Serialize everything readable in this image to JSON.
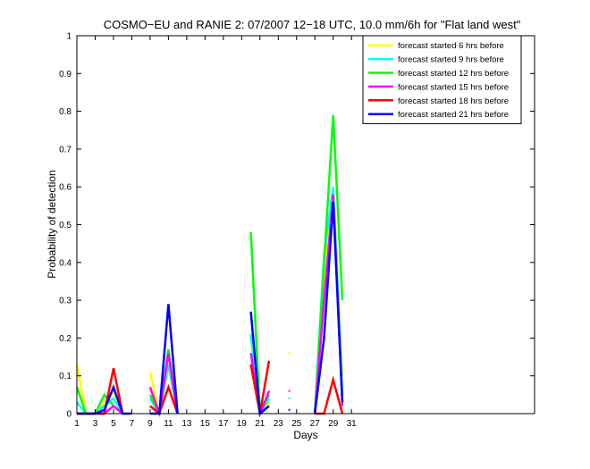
{
  "chart_data": {
    "type": "line",
    "title": "COSMO−EU and RANIE 2: 07/2007 12−18 UTC, 10.0 mm/6h for \"Flat land west\"",
    "xlabel": "Days",
    "ylabel": "Probability of detection",
    "xlim": [
      1,
      51
    ],
    "ylim": [
      0,
      1
    ],
    "xticks": [
      1,
      3,
      5,
      7,
      9,
      11,
      13,
      15,
      17,
      19,
      21,
      23,
      25,
      27,
      29,
      31
    ],
    "xtick_labels": [
      "1",
      "3",
      "5",
      "7",
      "9",
      "11",
      "13",
      "15",
      "17",
      "19",
      "21",
      "23",
      "25",
      "27",
      "29",
      "31"
    ],
    "yticks": [
      0,
      0.1,
      0.2,
      0.3,
      0.4,
      0.5,
      0.6,
      0.7,
      0.8,
      0.9,
      1
    ],
    "ytick_labels": [
      "0",
      "0.1",
      "0.2",
      "0.3",
      "0.4",
      "0.5",
      "0.6",
      "0.7",
      "0.8",
      "0.9",
      "1"
    ],
    "grid": false,
    "legend_position": "top-right",
    "series": [
      {
        "name": "forecast started 6 hrs before",
        "color": "#ffff00",
        "segments": [
          [
            [
              1,
              0.13
            ],
            [
              2,
              0
            ],
            [
              3,
              0
            ],
            [
              4,
              0.03
            ],
            [
              5,
              0.06
            ],
            [
              6,
              0
            ]
          ],
          [
            [
              9,
              0.11
            ],
            [
              10,
              0
            ],
            [
              11,
              0.12
            ],
            [
              12,
              0
            ]
          ],
          [
            [
              20,
              0.2
            ],
            [
              21,
              0
            ],
            [
              22,
              0.03
            ]
          ],
          [
            [
              27,
              0
            ],
            [
              28,
              0.35
            ],
            [
              29,
              0.6
            ],
            [
              30,
              0.1
            ]
          ]
        ],
        "points": [
          [
            24.2,
            0.16
          ]
        ]
      },
      {
        "name": "forecast started 9 hrs before",
        "color": "#00ffff",
        "segments": [
          [
            [
              1,
              0.03
            ],
            [
              2,
              0
            ],
            [
              3,
              0
            ],
            [
              4,
              0.02
            ],
            [
              5,
              0.04
            ],
            [
              6,
              0
            ]
          ],
          [
            [
              9,
              0.04
            ],
            [
              10,
              0
            ],
            [
              11,
              0.13
            ],
            [
              12,
              0
            ]
          ],
          [
            [
              20,
              0.21
            ],
            [
              21,
              0
            ],
            [
              22,
              0.04
            ]
          ],
          [
            [
              27,
              0
            ],
            [
              28,
              0.42
            ],
            [
              29,
              0.6
            ],
            [
              30,
              0.05
            ]
          ]
        ],
        "points": [
          [
            24.2,
            0.04
          ]
        ]
      },
      {
        "name": "forecast started 12 hrs before",
        "color": "#00ff00",
        "segments": [
          [
            [
              1,
              0.07
            ],
            [
              2,
              0
            ],
            [
              3,
              0
            ],
            [
              4,
              0.05
            ],
            [
              5,
              0.02
            ],
            [
              6,
              0
            ]
          ],
          [
            [
              9,
              0.05
            ],
            [
              10,
              0
            ],
            [
              11,
              0.17
            ],
            [
              12,
              0
            ]
          ],
          [
            [
              20,
              0.48
            ],
            [
              21,
              0
            ],
            [
              22,
              0.05
            ]
          ],
          [
            [
              27,
              0
            ],
            [
              28,
              0.4
            ],
            [
              29,
              0.79
            ],
            [
              30,
              0.3
            ]
          ]
        ],
        "points": []
      },
      {
        "name": "forecast started 15 hrs before",
        "color": "#ff00ff",
        "segments": [
          [
            [
              1,
              0
            ],
            [
              2,
              0
            ],
            [
              3,
              0
            ],
            [
              4,
              0
            ],
            [
              5,
              0.02
            ],
            [
              6,
              0
            ]
          ],
          [
            [
              9,
              0.07
            ],
            [
              10,
              0
            ],
            [
              11,
              0.16
            ],
            [
              12,
              0
            ]
          ],
          [
            [
              20,
              0.16
            ],
            [
              21,
              0
            ],
            [
              22,
              0.06
            ]
          ],
          [
            [
              27,
              0
            ],
            [
              28,
              0.3
            ],
            [
              29,
              0.58
            ],
            [
              30,
              0.02
            ]
          ]
        ],
        "points": [
          [
            24.2,
            0.06
          ]
        ]
      },
      {
        "name": "forecast started 18 hrs before",
        "color": "#ff0000",
        "segments": [
          [
            [
              1,
              0
            ],
            [
              2,
              0
            ],
            [
              3,
              0
            ],
            [
              4,
              0
            ],
            [
              5,
              0.12
            ],
            [
              6,
              0
            ]
          ],
          [
            [
              9,
              0.02
            ],
            [
              10,
              0
            ],
            [
              11,
              0.07
            ],
            [
              12,
              0
            ]
          ],
          [
            [
              20,
              0.13
            ],
            [
              21,
              0
            ],
            [
              22,
              0.14
            ]
          ],
          [
            [
              27,
              0
            ],
            [
              28,
              0
            ],
            [
              29,
              0.09
            ],
            [
              30,
              0
            ]
          ]
        ],
        "points": []
      },
      {
        "name": "forecast started 21 hrs before",
        "color": "#0000ff",
        "segments": [
          [
            [
              1,
              0
            ],
            [
              2,
              0
            ],
            [
              3,
              0
            ],
            [
              4,
              0.01
            ],
            [
              5,
              0.07
            ],
            [
              6,
              0
            ],
            [
              7,
              0
            ]
          ],
          [
            [
              9,
              0
            ],
            [
              10,
              0
            ],
            [
              11,
              0.29
            ],
            [
              12,
              0
            ]
          ],
          [
            [
              20,
              0.27
            ],
            [
              21,
              0
            ],
            [
              22,
              0.02
            ]
          ],
          [
            [
              27,
              0
            ],
            [
              28,
              0.2
            ],
            [
              29,
              0.56
            ],
            [
              30,
              0.03
            ]
          ]
        ],
        "points": [
          [
            24.2,
            0.01
          ]
        ]
      }
    ]
  }
}
